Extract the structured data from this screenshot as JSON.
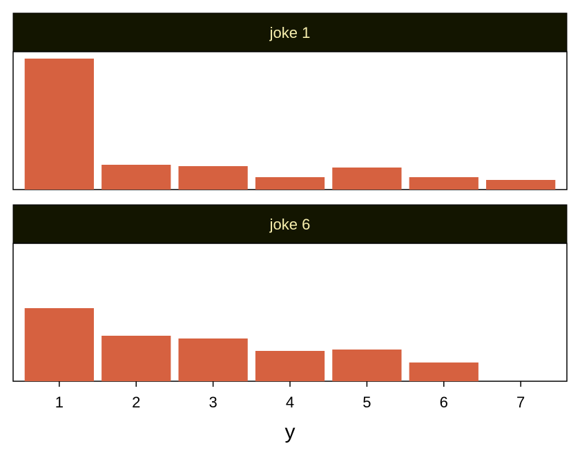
{
  "chart_data": {
    "type": "bar",
    "xlabel": "y",
    "ylabel": "",
    "categories": [
      "1",
      "2",
      "3",
      "4",
      "5",
      "6",
      "7"
    ],
    "ylim": [
      0,
      0.5
    ],
    "grid": false,
    "colors": {
      "bar": "#d66140",
      "strip": "#131500",
      "strip_text": "#f7efae"
    },
    "panels": [
      {
        "title": "joke 1",
        "values": [
          0.475,
          0.09,
          0.085,
          0.045,
          0.08,
          0.045,
          0.035
        ]
      },
      {
        "title": "joke 6",
        "values": [
          0.265,
          0.165,
          0.155,
          0.11,
          0.115,
          0.068,
          0.0
        ]
      }
    ]
  }
}
